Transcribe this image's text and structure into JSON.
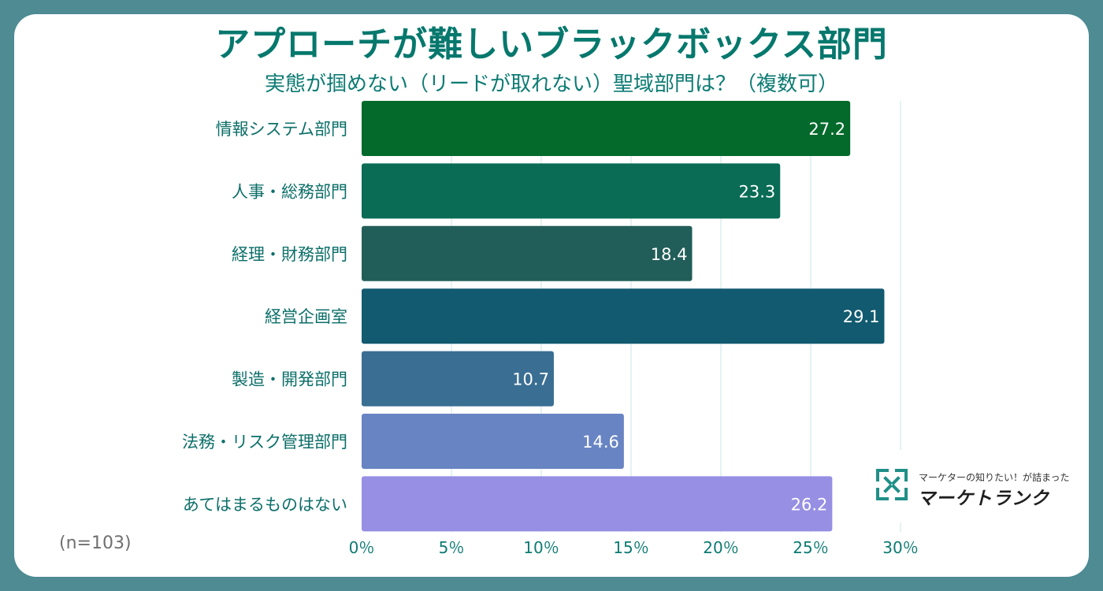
{
  "header": {
    "title": "アプローチが難しいブラックボックス部門",
    "subtitle": "実態が掴めない（リードが取れない）聖域部門は？（複数可）"
  },
  "footer": {
    "sample_size": "(n=103)"
  },
  "logo": {
    "tagline": "マーケターの知りたい！が詰まった",
    "name": "マーケトランク"
  },
  "colors": {
    "background": "#4e8b93",
    "title": "#06786d",
    "grid": "#d6e8ea",
    "bars": [
      "#046a2c",
      "#0a6c55",
      "#225e59",
      "#115a70",
      "#3a6e93",
      "#6884c3",
      "#978fe3"
    ]
  },
  "chart_data": {
    "type": "bar",
    "orientation": "horizontal",
    "title": "アプローチが難しいブラックボックス部門",
    "subtitle": "実態が掴めない（リードが取れない）聖域部門は？（複数可）",
    "categories": [
      "情報システム部門",
      "人事・総務部門",
      "経理・財務部門",
      "経営企画室",
      "製造・開発部門",
      "法務・リスク管理部門",
      "あてはまるものはない"
    ],
    "values": [
      27.2,
      23.3,
      18.4,
      29.1,
      10.7,
      14.6,
      26.2
    ],
    "value_labels": [
      "27.2",
      "23.3",
      "18.4",
      "29.1",
      "10.7",
      "14.6",
      "26.2"
    ],
    "xlim": [
      0,
      30
    ],
    "xticks": [
      0,
      5,
      10,
      15,
      20,
      25,
      30
    ],
    "xtick_labels": [
      "0％",
      "5％",
      "10％",
      "15％",
      "20％",
      "25％",
      "30％"
    ],
    "xlabel": "",
    "ylabel": "",
    "grid": true,
    "legend": "none"
  }
}
